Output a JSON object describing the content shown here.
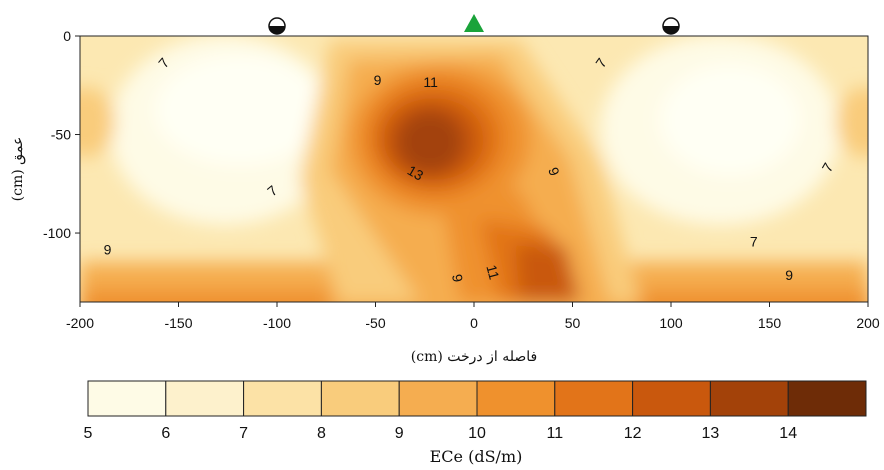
{
  "chart_data": {
    "type": "contour",
    "xlabel": "فاصله از درخت (cm)",
    "ylabel": "عمق (cm)",
    "colorbar_label": "ECe (dS/m)",
    "xlim": [
      -200,
      200
    ],
    "ylim": [
      -135,
      0
    ],
    "x_ticks": [
      "-200",
      "-150",
      "-100",
      "-50",
      "0",
      "50",
      "100",
      "150",
      "200"
    ],
    "y_ticks": [
      "0",
      "-50",
      "-100"
    ],
    "colorbar_ticks": [
      "5",
      "6",
      "7",
      "8",
      "9",
      "10",
      "11",
      "12",
      "13",
      "14"
    ],
    "levels": [
      5,
      6,
      7,
      8,
      9,
      10,
      11,
      12,
      13,
      14,
      15
    ],
    "level_colors": [
      "#fefbe6",
      "#fdf1cc",
      "#fce2a6",
      "#f9cc7c",
      "#f5ad50",
      "#ef912d",
      "#e27419",
      "#c9580d",
      "#a34209",
      "#6e2c07"
    ],
    "contour_labels": [
      {
        "text": "7",
        "x": -157,
        "y": -14,
        "rotate": -50
      },
      {
        "text": "9",
        "x": -49,
        "y": -23,
        "rotate": 0
      },
      {
        "text": "11",
        "x": -22,
        "y": -24,
        "rotate": 0
      },
      {
        "text": "7",
        "x": 65,
        "y": -14,
        "rotate": -55
      },
      {
        "text": "13",
        "x": -30,
        "y": -70,
        "rotate": 30
      },
      {
        "text": "9",
        "x": 40,
        "y": -69,
        "rotate": 70
      },
      {
        "text": "7",
        "x": -102,
        "y": -79,
        "rotate": -40
      },
      {
        "text": "7",
        "x": 180,
        "y": -67,
        "rotate": -60
      },
      {
        "text": "9",
        "x": -186,
        "y": -109,
        "rotate": 0
      },
      {
        "text": "7",
        "x": 142,
        "y": -105,
        "rotate": 0
      },
      {
        "text": "11",
        "x": 9,
        "y": -120,
        "rotate": 75
      },
      {
        "text": "9",
        "x": -9,
        "y": -123,
        "rotate": 80
      },
      {
        "text": "9",
        "x": 160,
        "y": -122,
        "rotate": 0
      }
    ],
    "markers": [
      {
        "x": -100,
        "symbol": "half-circle-icon"
      },
      {
        "x": 0,
        "symbol": "tree-triangle-icon",
        "color": "#1aa33a"
      },
      {
        "x": 100,
        "symbol": "half-circle-icon"
      }
    ]
  }
}
